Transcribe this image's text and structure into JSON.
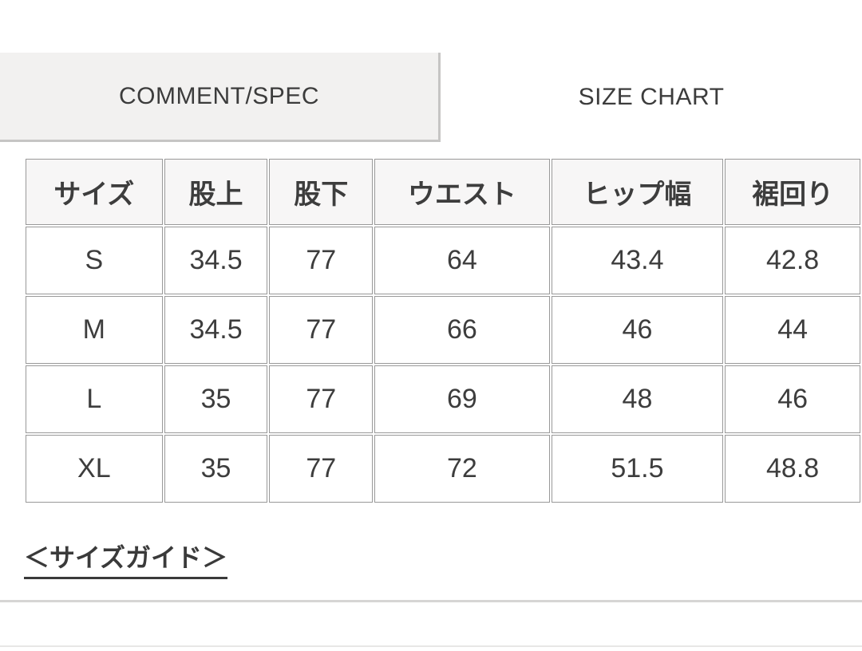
{
  "tabs": {
    "comment_spec": {
      "label": "COMMENT/SPEC",
      "active": true
    },
    "size_chart": {
      "label": "SIZE CHART",
      "active": false
    }
  },
  "size_table": {
    "columns": [
      "サイズ",
      "股上",
      "股下",
      "ウエスト",
      "ヒップ幅",
      "裾回り"
    ],
    "rows": [
      [
        "S",
        "34.5",
        "77",
        "64",
        "43.4",
        "42.8"
      ],
      [
        "M",
        "34.5",
        "77",
        "66",
        "46",
        "44"
      ],
      [
        "L",
        "35",
        "77",
        "69",
        "48",
        "46"
      ],
      [
        "XL",
        "35",
        "77",
        "72",
        "51.5",
        "48.8"
      ]
    ]
  },
  "links": {
    "size_guide": "＜サイズガイド＞"
  },
  "colors": {
    "tab_active_bg": "#f2f1f0",
    "tab_border": "#c6c5c4",
    "table_header_bg": "#f7f6f6",
    "cell_border": "#999999",
    "text": "#3c3c3c",
    "divider": "#d6d5d4"
  }
}
